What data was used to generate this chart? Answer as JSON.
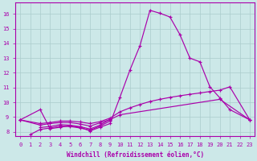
{
  "bg_color": "#cce8e8",
  "grid_color": "#aacccc",
  "line_color": "#aa00aa",
  "xlabel": "Windchill (Refroidissement éolien,°C)",
  "ylim": [
    7.7,
    16.8
  ],
  "xlim": [
    -0.5,
    23.5
  ],
  "yticks": [
    8,
    9,
    10,
    11,
    12,
    13,
    14,
    15,
    16
  ],
  "xticks": [
    0,
    1,
    2,
    3,
    4,
    5,
    6,
    7,
    8,
    9,
    10,
    11,
    12,
    13,
    14,
    15,
    16,
    17,
    18,
    19,
    20,
    21,
    22,
    23
  ],
  "lines": [
    {
      "comment": "main spike line: starts at 0~8.8, rises sharply 10-14 peak ~16.2, drops to 19~11, then 20~10.3, 21~9.5, 23~8.8",
      "x": [
        0,
        2,
        3,
        4,
        5,
        6,
        7,
        8,
        9,
        10,
        11,
        12,
        13,
        14,
        15,
        16,
        17,
        18,
        19,
        20,
        21,
        23
      ],
      "y": [
        8.8,
        9.5,
        8.2,
        8.3,
        8.4,
        8.3,
        8.05,
        8.3,
        8.55,
        10.35,
        12.2,
        13.85,
        16.25,
        16.05,
        15.8,
        14.6,
        13.0,
        12.75,
        11.05,
        10.3,
        9.5,
        8.8
      ]
    },
    {
      "x": [
        1,
        2,
        3,
        4,
        5,
        6,
        7,
        8,
        9
      ],
      "y": [
        7.8,
        8.15,
        8.25,
        8.38,
        8.35,
        8.25,
        8.1,
        8.38,
        8.72
      ]
    },
    {
      "x": [
        2,
        3,
        4,
        5,
        6,
        7,
        8,
        9
      ],
      "y": [
        8.28,
        8.35,
        8.48,
        8.44,
        8.34,
        8.18,
        8.45,
        8.84
      ]
    },
    {
      "x": [
        0,
        2,
        3,
        4,
        5,
        6,
        7,
        8,
        9,
        10,
        11,
        12,
        13,
        14,
        15,
        16,
        17,
        18,
        19,
        20,
        21,
        23
      ],
      "y": [
        8.8,
        8.55,
        8.62,
        8.72,
        8.72,
        8.66,
        8.55,
        8.68,
        8.92,
        9.35,
        9.62,
        9.85,
        10.05,
        10.2,
        10.33,
        10.44,
        10.54,
        10.63,
        10.73,
        10.82,
        11.05,
        8.8
      ]
    },
    {
      "comment": "medium rise line: 0~8.8, sparse to 20~10.2, 23~8.8",
      "x": [
        0,
        2,
        3,
        4,
        5,
        6,
        7,
        8,
        9,
        10,
        20,
        23
      ],
      "y": [
        8.8,
        8.45,
        8.55,
        8.62,
        8.62,
        8.52,
        8.38,
        8.6,
        8.82,
        9.15,
        10.2,
        8.8
      ]
    }
  ]
}
